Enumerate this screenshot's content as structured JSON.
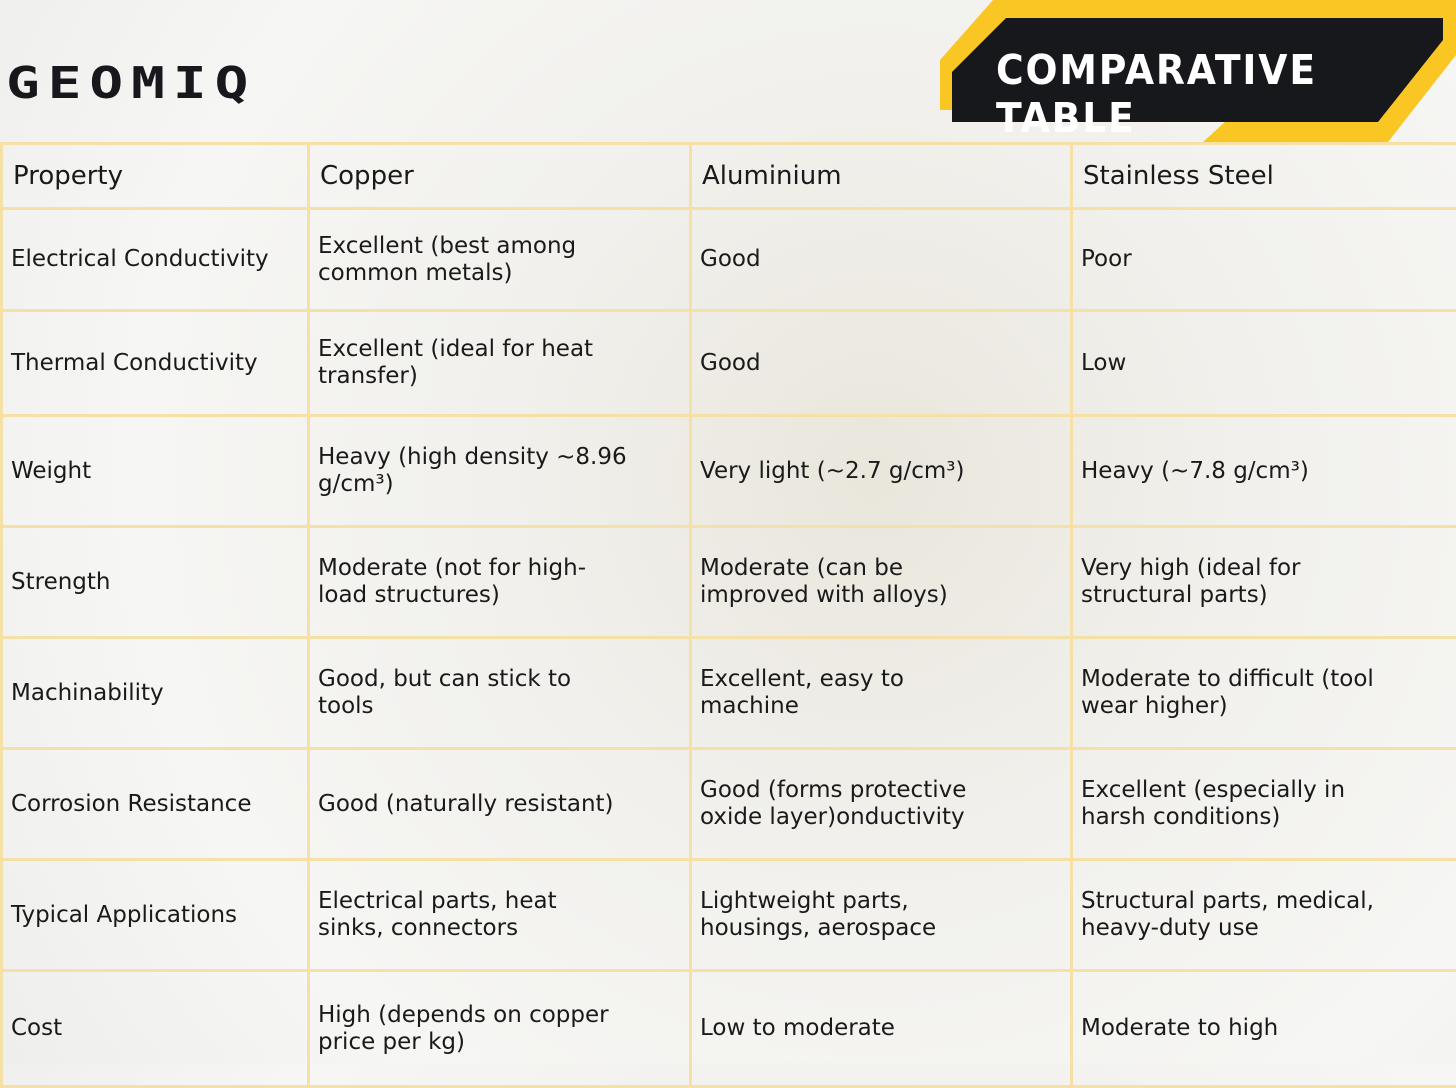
{
  "logo": "GEOMIQ",
  "badge": "COMPARATIVE TABLE",
  "table": {
    "columns": [
      "Property",
      "Copper",
      "Aluminium",
      "Stainless Steel"
    ],
    "rows": [
      [
        "Electrical Conductivity",
        "Excellent (best among common metals)",
        "Good",
        "Poor"
      ],
      [
        "Thermal Conductivity",
        "Excellent (ideal for heat transfer)",
        "Good",
        "Low"
      ],
      [
        "Weight",
        "Heavy (high density ~8.96 g/cm³)",
        "Very light (~2.7 g/cm³)",
        "Heavy (~7.8 g/cm³)"
      ],
      [
        "Strength",
        "Moderate (not for high-load structures)",
        "Moderate (can be improved with alloys)",
        "Very high (ideal for structural parts)"
      ],
      [
        "Machinability",
        "Good, but can stick to tools",
        "Excellent, easy to machine",
        "Moderate to difficult (tool wear higher)"
      ],
      [
        "Corrosion Resistance",
        "Good (naturally resistant)",
        "Good (forms protective oxide layer)onductivity",
        "Excellent (especially in harsh conditions)"
      ],
      [
        "Typical Applications",
        "Electrical parts, heat sinks, connectors",
        "Lightweight parts, housings, aerospace",
        "Structural parts, medical, heavy-duty use"
      ],
      [
        "Cost",
        "High (depends on copper price per kg)",
        "Low to moderate",
        "Moderate to high"
      ]
    ]
  }
}
